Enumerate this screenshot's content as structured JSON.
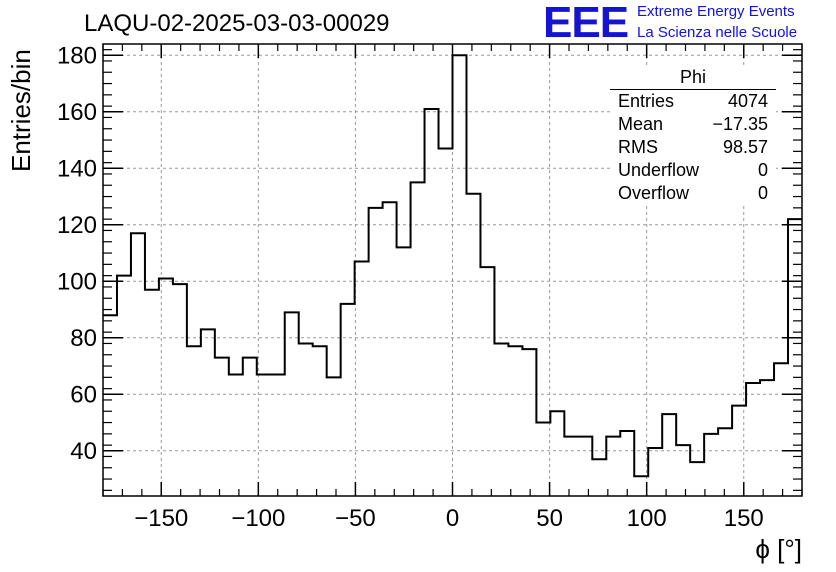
{
  "title": "LAQU-02-2025-03-03-00029",
  "logo": {
    "mark": "EEE",
    "line1": "Extreme Energy Events",
    "line2": "La Scienza nelle Scuole",
    "color": "#1414d2"
  },
  "stats_box": {
    "name": "Phi",
    "rows": [
      {
        "label": "Entries",
        "value": "4074"
      },
      {
        "label": "Mean",
        "value": "−17.35"
      },
      {
        "label": "RMS",
        "value": "98.57"
      },
      {
        "label": "Underflow",
        "value": "0"
      },
      {
        "label": "Overflow",
        "value": "0"
      }
    ]
  },
  "chart_data": {
    "type": "histogram",
    "title": "LAQU-02-2025-03-03-00029",
    "xlabel": "ϕ [°]",
    "ylabel": "Entries/bin",
    "xlim": [
      -180,
      180
    ],
    "ylim": [
      24,
      184
    ],
    "bin_width": 7.2,
    "x_ticks": [
      -150,
      -100,
      -50,
      0,
      50,
      100,
      150
    ],
    "x_tick_labels": [
      "−150",
      "−100",
      "−50",
      "0",
      "50",
      "100",
      "150"
    ],
    "y_ticks": [
      40,
      60,
      80,
      100,
      120,
      140,
      160,
      180
    ],
    "grid": true,
    "values": [
      88,
      102,
      117,
      97,
      101,
      99,
      77,
      83,
      73,
      67,
      73,
      67,
      67,
      89,
      78,
      77,
      66,
      92,
      107,
      126,
      128,
      112,
      135,
      161,
      147,
      180,
      131,
      105,
      78,
      77,
      76,
      50,
      54,
      45,
      45,
      37,
      45,
      47,
      31,
      41,
      53,
      42,
      36,
      46,
      48,
      56,
      64,
      65,
      71,
      122
    ]
  }
}
